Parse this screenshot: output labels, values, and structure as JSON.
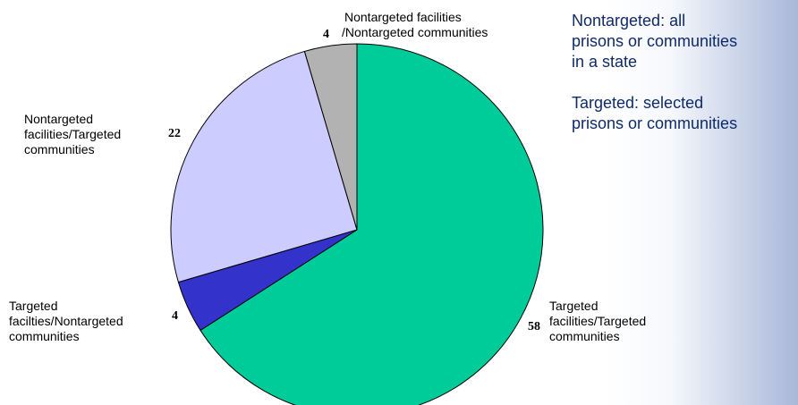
{
  "chart_data": {
    "type": "pie",
    "categories": [
      "Targeted facilities/Targeted communities",
      "Targeted facilties/Nontargeted communities",
      "Nontargeted facilities/Targeted communities",
      "Nontargeted facilities /Nontargeted communities"
    ],
    "values": [
      58,
      4,
      22,
      4
    ],
    "value_labels": [
      "58",
      "4",
      "22",
      "4"
    ],
    "label_lines": [
      [
        "Targeted",
        "facilities/Targeted",
        "communities"
      ],
      [
        "Targeted",
        "facilties/Nontargeted",
        "communities"
      ],
      [
        "Nontargeted",
        "facilities/Targeted",
        "communities"
      ],
      [
        "Nontargeted facilities",
        "/Nontargeted communities"
      ]
    ],
    "colors": [
      "#00cc99",
      "#3333cc",
      "#ccccff",
      "#b2b2b2"
    ],
    "start_angle": "12 o'clock",
    "direction": "clockwise"
  },
  "notes": {
    "nontargeted": [
      "Nontargeted: all",
      "prisons or communities",
      "in a state"
    ],
    "targeted": [
      "Targeted: selected",
      "prisons or communities"
    ]
  }
}
